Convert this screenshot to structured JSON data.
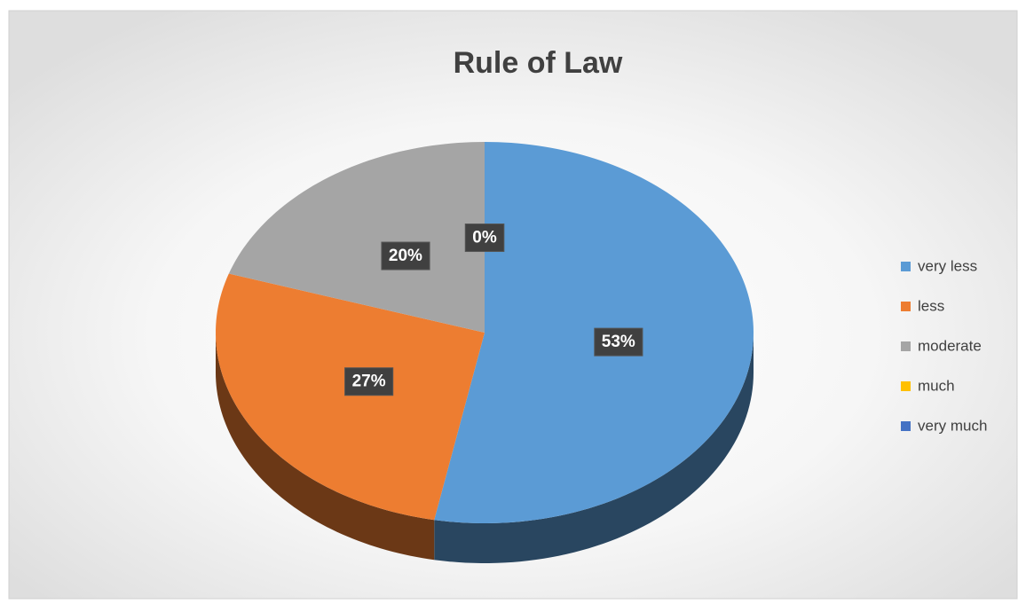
{
  "chart_data": {
    "type": "pie",
    "title": "Rule of Law",
    "categories": [
      "very less",
      "less",
      "moderate",
      "much",
      "very much"
    ],
    "values": [
      53,
      27,
      20,
      0,
      0
    ],
    "value_labels": [
      "53%",
      "27%",
      "20%",
      "0%",
      null
    ],
    "colors": [
      "#5b9bd5",
      "#ed7d31",
      "#a5a5a5",
      "#ffc000",
      "#4472c4"
    ],
    "legend": "right"
  }
}
